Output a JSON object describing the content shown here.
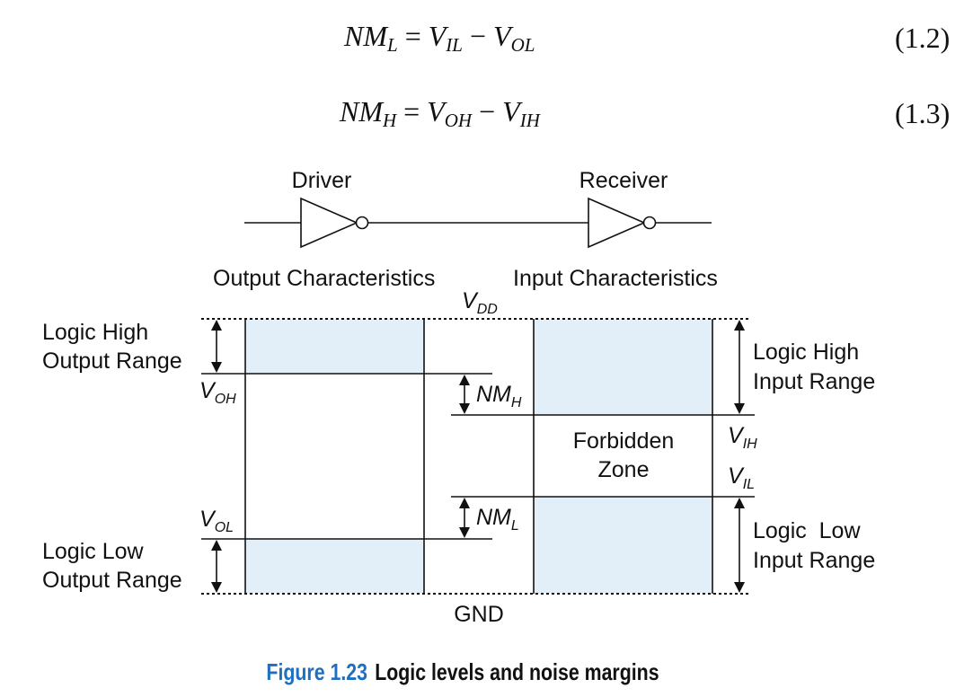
{
  "equations": [
    {
      "lhs_main": "NM",
      "lhs_sub": "L",
      "v1_main": "V",
      "v1_sub": "IL",
      "op": "−",
      "v2_main": "V",
      "v2_sub": "OL",
      "number": "(1.2)"
    },
    {
      "lhs_main": "NM",
      "lhs_sub": "H",
      "v1_main": "V",
      "v1_sub": "OH",
      "op": "−",
      "v2_main": "V",
      "v2_sub": "IH",
      "number": "(1.3)"
    }
  ],
  "diagram": {
    "driver_label": "Driver",
    "receiver_label": "Receiver",
    "output_char_label": "Output Characteristics",
    "input_char_label": "Input Characteristics",
    "vdd": {
      "main": "V",
      "sub": "DD"
    },
    "gnd": "GND",
    "logic_high_output": [
      "Logic High",
      "Output Range"
    ],
    "logic_low_output": [
      "Logic Low",
      "Output Range"
    ],
    "logic_high_input": [
      "Logic High",
      "Input Range"
    ],
    "logic_low_input": [
      "Logic  Low",
      "Input Range"
    ],
    "voh": {
      "main": "V",
      "sub": "OH"
    },
    "vol": {
      "main": "V",
      "sub": "OL"
    },
    "vih": {
      "main": "V",
      "sub": "IH"
    },
    "vil": {
      "main": "V",
      "sub": "IL"
    },
    "nmh": {
      "main": "NM",
      "sub": "H"
    },
    "nml": {
      "main": "NM",
      "sub": "L"
    },
    "forbidden": [
      "Forbidden",
      "Zone"
    ],
    "fill_color": "#e3eff8",
    "line_color": "#111111"
  },
  "caption": {
    "number": "Figure 1.23",
    "text": "Logic levels and noise margins",
    "number_color": "#1f6fc1"
  }
}
